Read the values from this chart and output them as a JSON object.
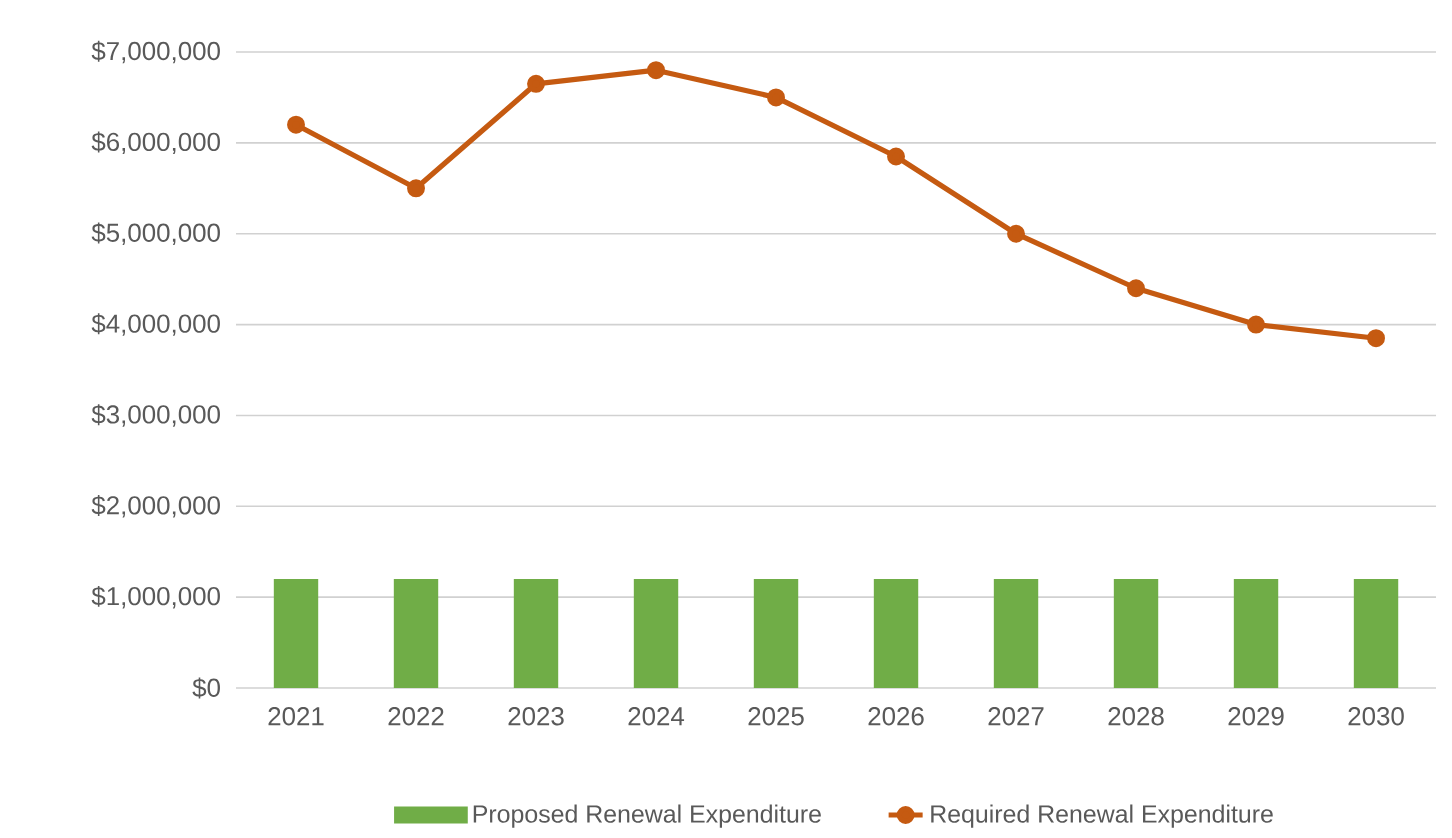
{
  "chart_data": {
    "type": "bar",
    "categories": [
      "2021",
      "2022",
      "2023",
      "2024",
      "2025",
      "2026",
      "2027",
      "2028",
      "2029",
      "2030"
    ],
    "series": [
      {
        "name": "Proposed Renewal Expenditure",
        "color": "#70ad47",
        "values": [
          1200000,
          1200000,
          1200000,
          1200000,
          1200000,
          1200000,
          1200000,
          1200000,
          1200000,
          1200000
        ]
      },
      {
        "name": "Required Renewal Expenditure",
        "type": "line",
        "marker": "circle",
        "color": "#c55a11",
        "values": [
          6200000,
          5500000,
          6650000,
          6800000,
          6500000,
          5850000,
          5000000,
          4400000,
          4000000,
          3850000
        ]
      }
    ],
    "ylim": [
      0,
      7000000
    ],
    "yticks": [
      {
        "value": 0,
        "label": "$0"
      },
      {
        "value": 1000000,
        "label": "$1,000,000"
      },
      {
        "value": 2000000,
        "label": "$2,000,000"
      },
      {
        "value": 3000000,
        "label": "$3,000,000"
      },
      {
        "value": 4000000,
        "label": "$4,000,000"
      },
      {
        "value": 5000000,
        "label": "$5,000,000"
      },
      {
        "value": 6000000,
        "label": "$6,000,000"
      },
      {
        "value": 7000000,
        "label": "$7,000,000"
      }
    ],
    "grid": "y",
    "legend": "bottom"
  }
}
